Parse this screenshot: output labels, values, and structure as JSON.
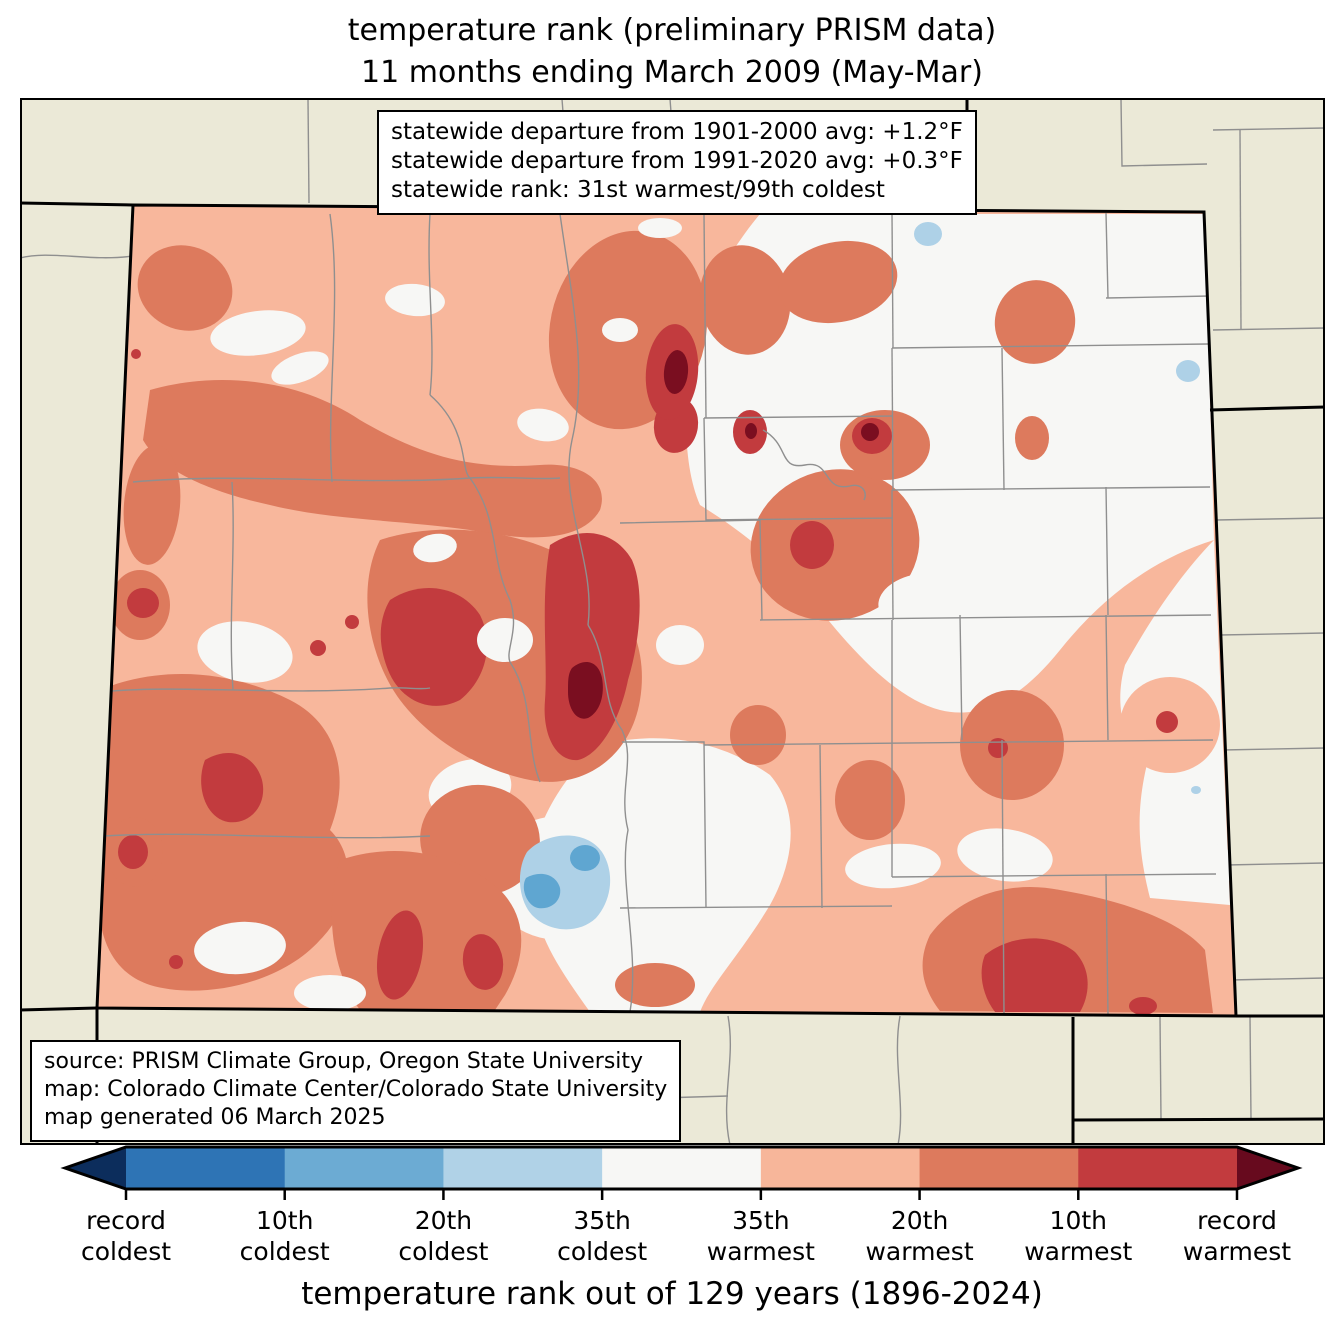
{
  "title": {
    "line1": "temperature rank (preliminary PRISM data)",
    "line2": "11 months ending March 2009 (May-Mar)"
  },
  "stats_box": {
    "lines": [
      "statewide departure from 1901-2000 avg: +1.2°F",
      "statewide departure from 1991-2020 avg: +0.3°F",
      "statewide rank: 31st warmest/99th coldest"
    ]
  },
  "source_box": {
    "lines": [
      "source: PRISM Climate Group, Oregon State University",
      "map: Colorado Climate Center/Colorado State University",
      "map generated 06 March 2025"
    ]
  },
  "colorbar": {
    "axis_label": "temperature rank out of 129 years (1896-2024)",
    "arrow_left_color": "#0c2d5c",
    "arrow_right_color": "#670a1e",
    "segment_colors": [
      "#2e74b5",
      "#6cabd3",
      "#b0d2e7",
      "#f7f7f5",
      "#f7b69a",
      "#dd7a5d",
      "#c23b3e"
    ],
    "tick_labels": [
      {
        "top": "record",
        "bottom": "coldest"
      },
      {
        "top": "10th",
        "bottom": "coldest"
      },
      {
        "top": "20th",
        "bottom": "coldest"
      },
      {
        "top": "35th",
        "bottom": "coldest"
      },
      {
        "top": "35th",
        "bottom": "warmest"
      },
      {
        "top": "20th",
        "bottom": "warmest"
      },
      {
        "top": "10th",
        "bottom": "warmest"
      },
      {
        "top": "record",
        "bottom": "warmest"
      }
    ]
  },
  "map": {
    "palette": {
      "outside_state": "#ebe9d7",
      "near_normal": "#f7f7f5",
      "warm_35th": "#f8b79c",
      "warm_20th": "#dd7a5d",
      "warm_10th": "#c23b3e",
      "record_warm": "#7a0e20",
      "cold_35th": "#aed1e7",
      "cold_20th": "#5fa6d1",
      "county_line": "#8f8f8f",
      "state_line": "#000000"
    }
  }
}
